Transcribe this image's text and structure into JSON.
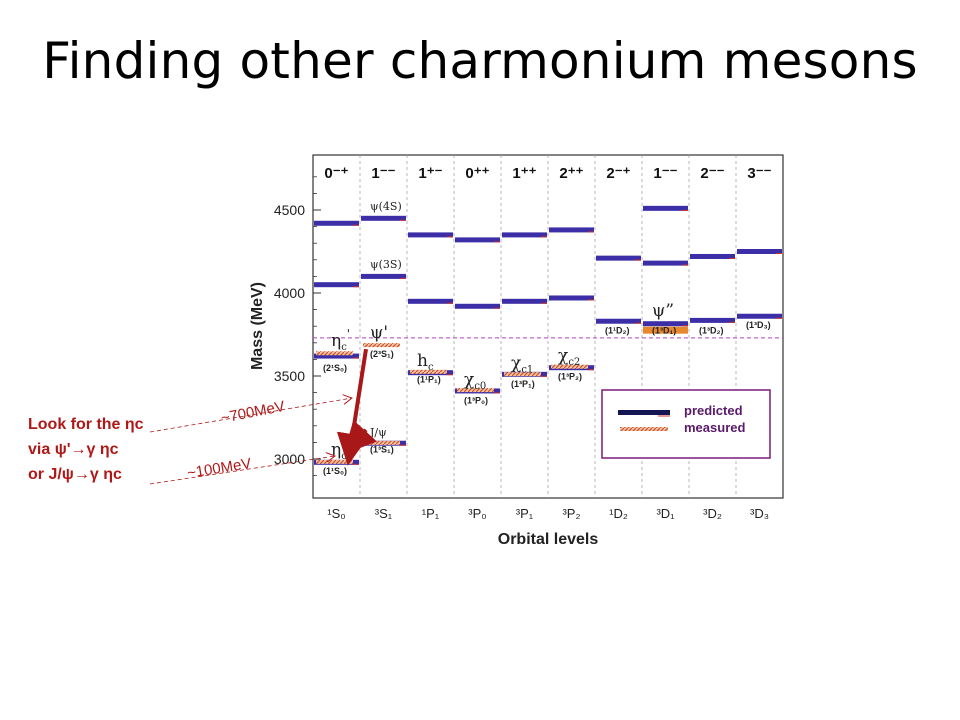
{
  "slide": {
    "title": "Finding other charmonium mesons"
  },
  "chart_data": {
    "type": "level-diagram",
    "ylabel": "Mass (MeV)",
    "xlabel": "Orbital levels",
    "ylim": [
      2800,
      4800
    ],
    "yticks": [
      3000,
      3500,
      4000,
      4500
    ],
    "columns": [
      {
        "jpc": "0⁻⁺",
        "level": "¹S₀"
      },
      {
        "jpc": "1⁻⁻",
        "level": "³S₁"
      },
      {
        "jpc": "1⁺⁻",
        "level": "¹P₁"
      },
      {
        "jpc": "0⁺⁺",
        "level": "³P₀"
      },
      {
        "jpc": "1⁺⁺",
        "level": "³P₁"
      },
      {
        "jpc": "2⁺⁺",
        "level": "³P₂"
      },
      {
        "jpc": "2⁻⁺",
        "level": "¹D₂"
      },
      {
        "jpc": "1⁻⁻",
        "level": "³D₁"
      },
      {
        "jpc": "2⁻⁻",
        "level": "³D₂"
      },
      {
        "jpc": "3⁻⁻",
        "level": "³D₃"
      }
    ],
    "predicted": [
      {
        "col": 0,
        "mass": 2980
      },
      {
        "col": 0,
        "mass": 3620
      },
      {
        "col": 0,
        "mass": 4050
      },
      {
        "col": 0,
        "mass": 4420
      },
      {
        "col": 1,
        "mass": 3095
      },
      {
        "col": 1,
        "mass": 4100
      },
      {
        "col": 1,
        "mass": 4450
      },
      {
        "col": 2,
        "mass": 3520
      },
      {
        "col": 2,
        "mass": 3950
      },
      {
        "col": 2,
        "mass": 4350
      },
      {
        "col": 3,
        "mass": 3410
      },
      {
        "col": 3,
        "mass": 3920
      },
      {
        "col": 3,
        "mass": 4320
      },
      {
        "col": 4,
        "mass": 3510
      },
      {
        "col": 4,
        "mass": 3950
      },
      {
        "col": 4,
        "mass": 4350
      },
      {
        "col": 5,
        "mass": 3550
      },
      {
        "col": 5,
        "mass": 3970
      },
      {
        "col": 5,
        "mass": 4380
      },
      {
        "col": 6,
        "mass": 3830
      },
      {
        "col": 6,
        "mass": 4210
      },
      {
        "col": 7,
        "mass": 3815
      },
      {
        "col": 7,
        "mass": 4180
      },
      {
        "col": 7,
        "mass": 4510
      },
      {
        "col": 8,
        "mass": 3835
      },
      {
        "col": 8,
        "mass": 4220
      },
      {
        "col": 9,
        "mass": 3860
      },
      {
        "col": 9,
        "mass": 4250
      }
    ],
    "measured": [
      {
        "col": 0,
        "mass": 2983
      },
      {
        "col": 0,
        "mass": 3637
      },
      {
        "col": 1,
        "mass": 3097
      },
      {
        "col": 1,
        "mass": 3686
      },
      {
        "col": 2,
        "mass": 3525
      },
      {
        "col": 3,
        "mass": 3415
      },
      {
        "col": 4,
        "mass": 3511
      },
      {
        "col": 5,
        "mass": 3556
      },
      {
        "col": 7,
        "mass": 3773
      }
    ],
    "state_labels": [
      {
        "col": 0,
        "mass": 3680,
        "text": "η",
        "sub": "c",
        "sup": "'"
      },
      {
        "col": 0,
        "mass": 3025,
        "text": "η",
        "sub": "c",
        "sup": ""
      },
      {
        "col": 1,
        "mass": 4500,
        "text": "ψ(4S)",
        "sub": "",
        "sup": ""
      },
      {
        "col": 1,
        "mass": 4150,
        "text": "ψ(3S)",
        "sub": "",
        "sup": ""
      },
      {
        "col": 1,
        "mass": 3730,
        "text": "ψ'",
        "sub": "",
        "sup": ""
      },
      {
        "col": 1,
        "mass": 3140,
        "text": "J/ψ",
        "sub": "",
        "sup": ""
      },
      {
        "col": 2,
        "mass": 3560,
        "text": "h",
        "sub": "c",
        "sup": ""
      },
      {
        "col": 3,
        "mass": 3445,
        "text": "χ",
        "sub": "c0",
        "sup": ""
      },
      {
        "col": 4,
        "mass": 3545,
        "text": "χ",
        "sub": "c1",
        "sup": ""
      },
      {
        "col": 5,
        "mass": 3590,
        "text": "χ",
        "sub": "c2",
        "sup": ""
      },
      {
        "col": 7,
        "mass": 3860,
        "text": "ψ”",
        "sub": "",
        "sup": ""
      }
    ],
    "spectro_labels": [
      {
        "col": 0,
        "mass": 3530,
        "text": "(2¹S₀)"
      },
      {
        "col": 0,
        "mass": 2910,
        "text": "(1¹S₀)"
      },
      {
        "col": 1,
        "mass": 3615,
        "text": "(2³S₁)"
      },
      {
        "col": 1,
        "mass": 3040,
        "text": "(1³S₁)"
      },
      {
        "col": 2,
        "mass": 3460,
        "text": "(1¹P₁)"
      },
      {
        "col": 3,
        "mass": 3335,
        "text": "(1³P₀)"
      },
      {
        "col": 4,
        "mass": 3435,
        "text": "(1³P₁)"
      },
      {
        "col": 5,
        "mass": 3480,
        "text": "(1³P₂)"
      },
      {
        "col": 6,
        "mass": 3755,
        "text": "(1¹D₂)"
      },
      {
        "col": 7,
        "mass": 3755,
        "text": "(1³D₁)"
      },
      {
        "col": 8,
        "mass": 3755,
        "text": "(1³D₂)"
      },
      {
        "col": 9,
        "mass": 3790,
        "text": "(1³D₃)"
      }
    ],
    "threshold_mass": 3730,
    "legend": {
      "predicted": "predicted",
      "measured": "measured",
      "placement": "lower-right"
    },
    "transitions": [
      {
        "from_col": 1,
        "from_mass": 3686,
        "to_col": 0,
        "to_mass": 2983
      },
      {
        "from_col": 1,
        "from_mass": 3200,
        "to_col": 0,
        "to_mass": 3040
      }
    ],
    "annotations": [
      {
        "text": "~700MeV"
      },
      {
        "text": "~100MeV"
      }
    ],
    "colors": {
      "predicted": "#3b2ea6",
      "predicted_dark": "#151554",
      "measured": "#c8552c",
      "arrow": "#a81818",
      "threshold": "#b040c0",
      "annotation": "#b01818"
    }
  },
  "note": {
    "line1": "Look for the ηc",
    "line2": "via ψ'→γ ηc",
    "line3": "or J/ψ→γ ηc"
  }
}
